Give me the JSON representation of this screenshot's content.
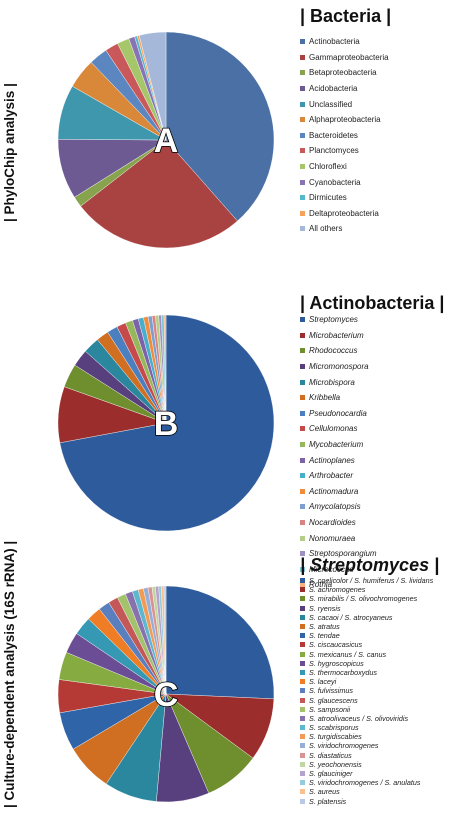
{
  "side_labels": {
    "top": "| PhyloChip analysis |",
    "bottom": "| Culture-dependent analysis (16S rRNA) |"
  },
  "chart_data": [
    {
      "type": "pie",
      "panel_letter": "A",
      "legend_title": "| Bacteria |",
      "title_italic": false,
      "slices": [
        {
          "label": "Actinobacteria",
          "value": 38.5,
          "color": "#4a70a6"
        },
        {
          "label": "Gammaproteobacteria",
          "value": 26.0,
          "color": "#a84341"
        },
        {
          "label": "Betaproteobacteria",
          "value": 1.6,
          "color": "#87a34e"
        },
        {
          "label": "Acidobacteria",
          "value": 9.0,
          "color": "#6e5a93"
        },
        {
          "label": "Unclassified",
          "value": 8.2,
          "color": "#3f97ad"
        },
        {
          "label": "Alphaproteobacteria",
          "value": 4.5,
          "color": "#d9883a"
        },
        {
          "label": "Bacteroidetes",
          "value": 2.8,
          "color": "#5b86c0"
        },
        {
          "label": "Planctomyces",
          "value": 2.0,
          "color": "#c9585a"
        },
        {
          "label": "Chloroflexi",
          "value": 1.8,
          "color": "#a5c76a"
        },
        {
          "label": "Cyanobacteria",
          "value": 0.9,
          "color": "#8a73b5"
        },
        {
          "label": "Dirmicutes",
          "value": 0.4,
          "color": "#55b8cc"
        },
        {
          "label": "Deltaproteobacteria",
          "value": 0.3,
          "color": "#f5a35a"
        },
        {
          "label": "All others",
          "value": 4.0,
          "color": "#a6b8da"
        }
      ]
    },
    {
      "type": "pie",
      "panel_letter": "B",
      "legend_title": "| Actinobacteria |",
      "title_italic": false,
      "slices": [
        {
          "label": "Streptomyces",
          "value": 73.0,
          "color": "#2e5b9b"
        },
        {
          "label": "Microbacterium",
          "value": 8.5,
          "color": "#9b2e2c"
        },
        {
          "label": "Rhodococcus",
          "value": 3.6,
          "color": "#6f8f2f"
        },
        {
          "label": "Micromonospora",
          "value": 2.6,
          "color": "#583f7e"
        },
        {
          "label": "Microbispora",
          "value": 2.5,
          "color": "#2a879e"
        },
        {
          "label": "Kribbella",
          "value": 1.9,
          "color": "#d06e21"
        },
        {
          "label": "Pseudonocardia",
          "value": 1.6,
          "color": "#4c7fc0"
        },
        {
          "label": "Cellulomonas",
          "value": 1.4,
          "color": "#c54b4b"
        },
        {
          "label": "Mycobacterium",
          "value": 1.1,
          "color": "#94b85a"
        },
        {
          "label": "Actinoplanes",
          "value": 0.9,
          "color": "#7c62a8"
        },
        {
          "label": "Arthrobacter",
          "value": 0.8,
          "color": "#47aecb"
        },
        {
          "label": "Actinomadura",
          "value": 0.7,
          "color": "#f08c3c"
        },
        {
          "label": "Amycolatopsis",
          "value": 0.6,
          "color": "#7d9fd0"
        },
        {
          "label": "Nocardioides",
          "value": 0.5,
          "color": "#d88384"
        },
        {
          "label": "Nonomuraea",
          "value": 0.5,
          "color": "#b5cd88"
        },
        {
          "label": "Streptosporangium",
          "value": 0.4,
          "color": "#a08fc2"
        },
        {
          "label": "Micrococcus",
          "value": 0.4,
          "color": "#7ec7d9"
        },
        {
          "label": "Rothia",
          "value": 0.3,
          "color": "#f7b17e"
        }
      ]
    },
    {
      "type": "pie",
      "panel_letter": "C",
      "legend_title": "| Streptomyces |",
      "title_italic": true,
      "slices": [
        {
          "label": "S. coelicolor / S. humiferus / S. lividans",
          "value": 26.0,
          "color": "#2e5b9b"
        },
        {
          "label": "S. achromogenes",
          "value": 9.5,
          "color": "#9b2e2c"
        },
        {
          "label": "S. mirabilis / S. olivochromogenes",
          "value": 8.5,
          "color": "#6f8f2f"
        },
        {
          "label": "S. ryensis",
          "value": 8.0,
          "color": "#583f7e"
        },
        {
          "label": "S. cacaoi / S. atrocyaneus",
          "value": 8.0,
          "color": "#2a879e"
        },
        {
          "label": "S. atratus",
          "value": 7.2,
          "color": "#d06e21"
        },
        {
          "label": "S. tendae",
          "value": 5.8,
          "color": "#2f64a8"
        },
        {
          "label": "S. ciscaucasicus",
          "value": 5.0,
          "color": "#b53935"
        },
        {
          "label": "S. mexicanus / S. canus",
          "value": 4.2,
          "color": "#86ab41"
        },
        {
          "label": "S. hygroscopicus",
          "value": 3.2,
          "color": "#6b4d95"
        },
        {
          "label": "S. thermocarboxydus",
          "value": 2.8,
          "color": "#3599b3"
        },
        {
          "label": "S. laceyi",
          "value": 2.2,
          "color": "#ef7d25"
        },
        {
          "label": "S. fulvissimus",
          "value": 1.7,
          "color": "#5a7fbf"
        },
        {
          "label": "S. glaucescens",
          "value": 1.5,
          "color": "#c45858"
        },
        {
          "label": "S. sampsonii",
          "value": 1.3,
          "color": "#a3c26c"
        },
        {
          "label": "S. atroolivaceus / S. olivoviridis",
          "value": 1.1,
          "color": "#8872ae"
        },
        {
          "label": "S. scabrisporus",
          "value": 0.9,
          "color": "#5db7ce"
        },
        {
          "label": "S. turgidiscabies",
          "value": 0.8,
          "color": "#f39b55"
        },
        {
          "label": "S. viridochromogenes",
          "value": 0.7,
          "color": "#97aed6"
        },
        {
          "label": "S. diastaticus",
          "value": 0.6,
          "color": "#d99392"
        },
        {
          "label": "S. yeochonensis",
          "value": 0.5,
          "color": "#c2d69f"
        },
        {
          "label": "S. glauciniger",
          "value": 0.5,
          "color": "#b3a2cb"
        },
        {
          "label": "S. viridochromogenes / S. anulatus",
          "value": 0.4,
          "color": "#93cddd"
        },
        {
          "label": "S. aureus",
          "value": 0.4,
          "color": "#f8bf8f"
        },
        {
          "label": "S. platensis",
          "value": 0.3,
          "color": "#b9c8e5"
        }
      ]
    }
  ]
}
